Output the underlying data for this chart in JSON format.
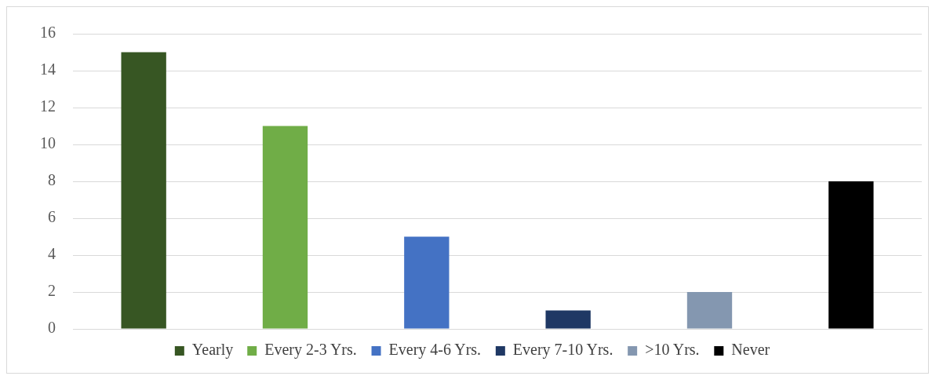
{
  "chart_data": {
    "type": "bar",
    "categories": [
      null,
      null,
      null,
      null,
      null,
      null
    ],
    "series": [
      {
        "name": "Yearly",
        "color": "#375623",
        "values": [
          15,
          null,
          null,
          null,
          null,
          null
        ]
      },
      {
        "name": "Every 2-3 Yrs.",
        "color": "#70ad47",
        "values": [
          null,
          11,
          null,
          null,
          null,
          null
        ]
      },
      {
        "name": "Every 4-6 Yrs.",
        "color": "#4472c4",
        "values": [
          null,
          null,
          5,
          null,
          null,
          null
        ]
      },
      {
        "name": "Every 7-10 Yrs.",
        "color": "#1f3864",
        "values": [
          null,
          null,
          null,
          1,
          null,
          null
        ]
      },
      {
        "name": ">10 Yrs.",
        "color": "#8497b0",
        "values": [
          null,
          null,
          null,
          null,
          2,
          null
        ]
      },
      {
        "name": "Never",
        "color": "#000000",
        "values": [
          null,
          null,
          null,
          null,
          null,
          8
        ]
      }
    ],
    "ylim": [
      0,
      16
    ],
    "yticks": [
      0,
      2,
      4,
      6,
      8,
      10,
      12,
      14,
      16
    ],
    "grid": "y",
    "legend": "bottom"
  }
}
